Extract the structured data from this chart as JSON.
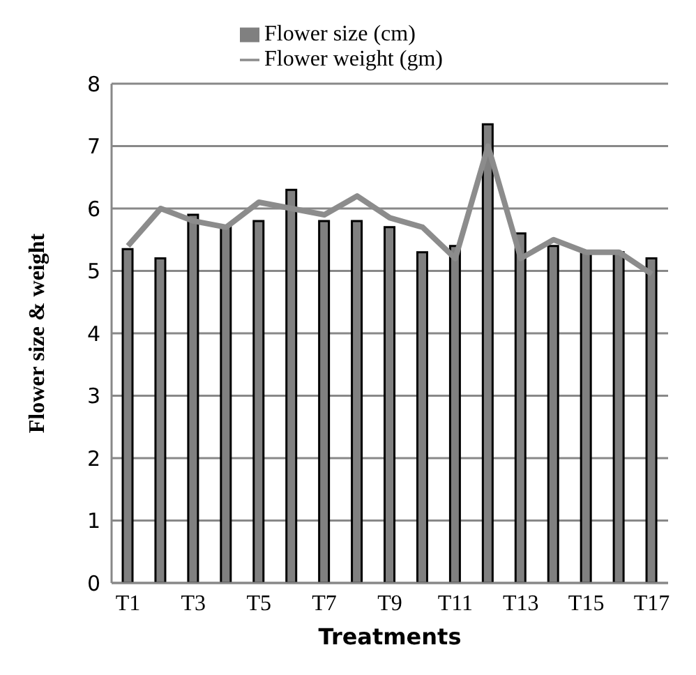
{
  "chart_data": {
    "type": "bar",
    "xlabel": "Treatments",
    "ylabel": "Flower size & weight",
    "categories": [
      "T1",
      null,
      "T3",
      null,
      "T5",
      null,
      "T7",
      null,
      "T9",
      null,
      "T11",
      null,
      "T13",
      null,
      "T15",
      null,
      "T17"
    ],
    "series": [
      {
        "name": "Flower size (cm)",
        "color": "#808080",
        "values": [
          5.35,
          5.2,
          5.9,
          5.7,
          5.8,
          6.3,
          5.8,
          5.8,
          5.7,
          5.3,
          5.4,
          7.35,
          5.6,
          5.4,
          5.3,
          5.3,
          5.2
        ]
      },
      {
        "name": "Flower weight (gm)",
        "type": "line",
        "color": "#8c8c8c",
        "values": [
          5.4,
          6.0,
          5.8,
          5.7,
          6.1,
          6.0,
          5.9,
          6.2,
          5.85,
          5.7,
          5.2,
          7.0,
          5.2,
          5.5,
          5.3,
          5.3,
          4.95
        ]
      }
    ],
    "ylim": [
      0,
      8
    ],
    "yticks": [
      0,
      1,
      2,
      3,
      4,
      5,
      6,
      7,
      8
    ],
    "grid": "y",
    "legend": "top",
    "marker": "none"
  }
}
